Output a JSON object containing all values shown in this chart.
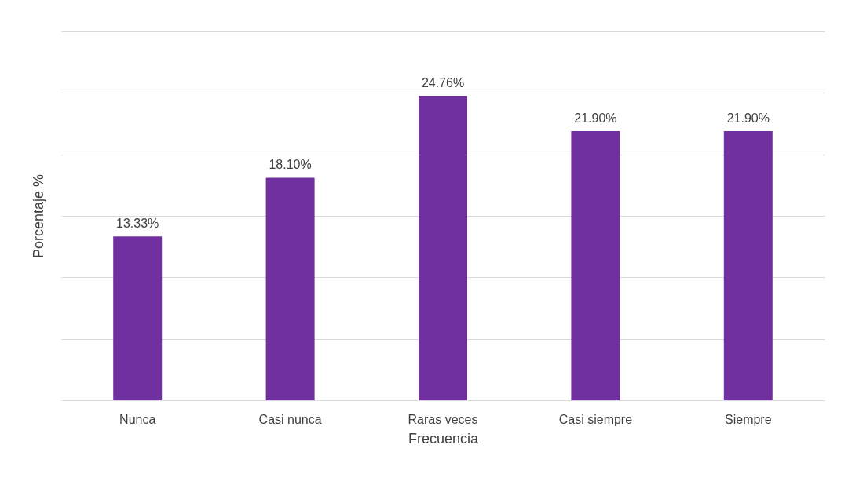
{
  "chart_data": {
    "type": "bar",
    "xlabel": "Frecuencia",
    "ylabel": "Porcentaje %",
    "categories": [
      "Nunca",
      "Casi nunca",
      "Raras veces",
      "Casi siempre",
      "Siempre"
    ],
    "values": [
      13.33,
      18.1,
      24.76,
      21.9,
      21.9
    ],
    "value_labels": [
      "13.33%",
      "18.10%",
      "24.76%",
      "21.90%",
      "21.90%"
    ],
    "color": "#7030a0",
    "ylim": [
      0,
      30
    ],
    "yticks": [
      {
        "value": 0,
        "label": null
      },
      {
        "value": 5,
        "label": null
      },
      {
        "value": 10,
        "label": null
      },
      {
        "value": 15,
        "label": null
      },
      {
        "value": 20,
        "label": null
      },
      {
        "value": 25,
        "label": null
      },
      {
        "value": 30,
        "label": null
      }
    ],
    "grid": "y",
    "tick_labels": "x"
  }
}
